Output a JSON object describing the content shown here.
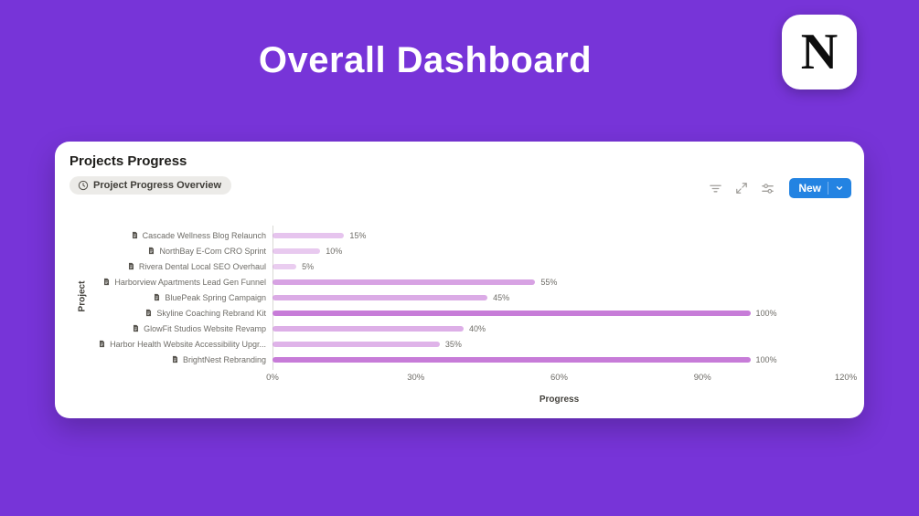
{
  "page": {
    "title": "Overall Dashboard"
  },
  "logo": {
    "letter": "N"
  },
  "colors": {
    "background": "#7734D8",
    "accent_blue": "#2383E2",
    "bar": "#C77CD8",
    "badge_bg": "#ECEBE8"
  },
  "card": {
    "title": "Projects Progress",
    "badge": {
      "label": "Project Progress Overview",
      "icon": "clock-icon"
    },
    "toolbar": {
      "new_label": "New",
      "icons": [
        "filter-icon",
        "expand-icon",
        "sliders-icon",
        "chevron-down-icon"
      ]
    }
  },
  "chart_data": {
    "type": "bar",
    "orientation": "horizontal",
    "title": "Project Progress Overview",
    "xlabel": "Progress",
    "ylabel": "Project",
    "xlim": [
      0,
      120
    ],
    "x_ticks": [
      "0%",
      "30%",
      "60%",
      "90%",
      "120%"
    ],
    "grid": false,
    "legend": false,
    "bar_color": "#C77CD8",
    "categories": [
      "Cascade Wellness Blog Relaunch",
      "NorthBay E-Com CRO Sprint",
      "Rivera Dental Local SEO Overhaul",
      "Harborview Apartments Lead Gen Funnel",
      "BluePeak Spring Campaign",
      "Skyline Coaching Rebrand Kit",
      "GlowFit Studios Website Revamp",
      "Harbor Health Website Accessibility Upgr...",
      "BrightNest Rebranding"
    ],
    "values": [
      15,
      10,
      5,
      55,
      45,
      100,
      40,
      35,
      100
    ],
    "value_labels": [
      "15%",
      "10%",
      "5%",
      "55%",
      "45%",
      "100%",
      "40%",
      "35%",
      "100%"
    ]
  }
}
